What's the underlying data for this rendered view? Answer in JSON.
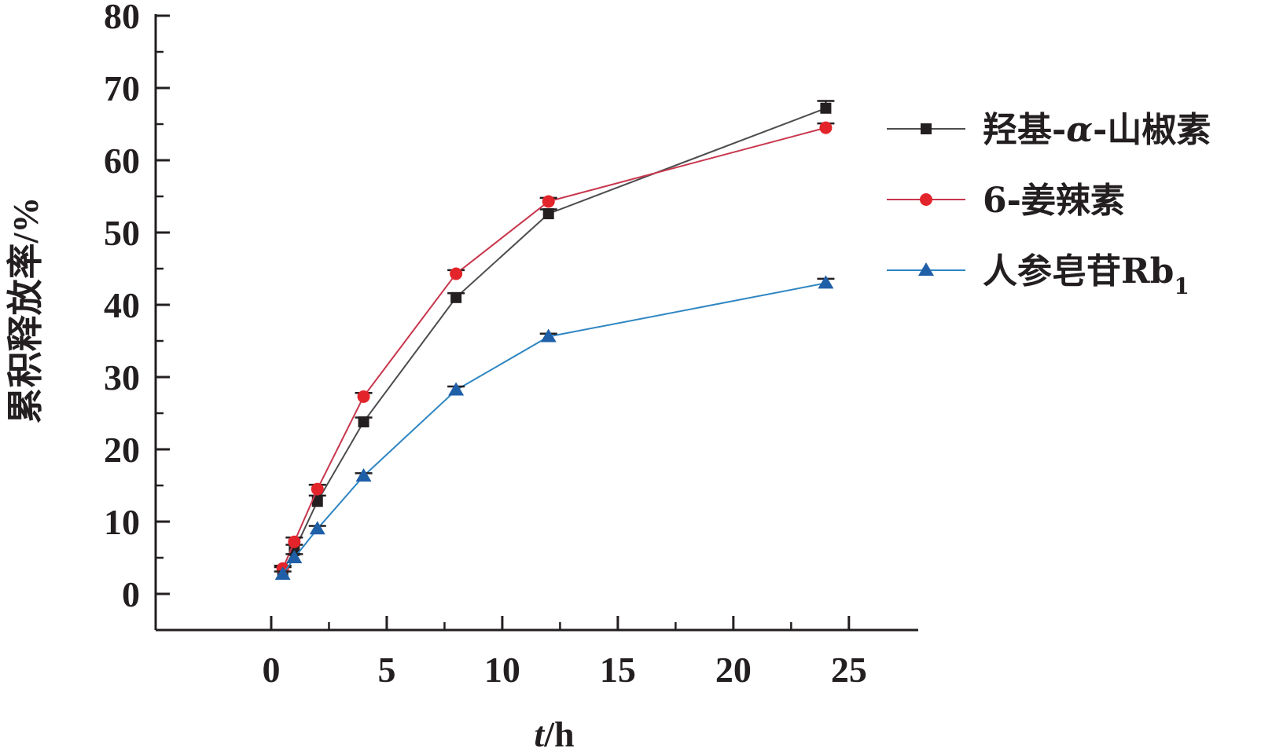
{
  "chart_data": {
    "type": "line",
    "xlabel": {
      "italic": "t",
      "rest": "/h"
    },
    "ylabel": "累积释放率/%",
    "xlim": [
      -5,
      28
    ],
    "ylim": [
      -5,
      80
    ],
    "xticks": [
      0,
      5,
      10,
      15,
      20,
      25
    ],
    "xticks_minor": [
      2.5,
      7.5,
      12.5,
      17.5,
      22.5
    ],
    "yticks": [
      0,
      10,
      20,
      30,
      40,
      50,
      60,
      70,
      80
    ],
    "yticks_minor": [
      5,
      15,
      25,
      35,
      45,
      55,
      65,
      75
    ],
    "x": [
      0.5,
      1,
      2,
      4,
      8,
      12,
      24
    ],
    "grid": false,
    "legend_position": "top-right, outside plot area",
    "series": [
      {
        "name": "羟基-α-山椒素",
        "name_parts": [
          "羟基-",
          "α",
          "-山椒素"
        ],
        "marker": "square",
        "color": "#4d4d4f",
        "marker_color": "#231f20",
        "values": [
          3.2,
          6.0,
          12.8,
          23.8,
          41.0,
          52.6,
          67.2
        ],
        "errors": [
          0.5,
          0.8,
          0.8,
          0.6,
          0.6,
          0.6,
          1.0
        ]
      },
      {
        "name": "6-姜辣素",
        "marker": "circle",
        "color": "#c8374d",
        "marker_color": "#e3242b",
        "values": [
          3.5,
          7.2,
          14.5,
          27.3,
          44.3,
          54.3,
          64.5
        ],
        "errors": [
          0.4,
          0.6,
          0.6,
          0.5,
          0.5,
          0.5,
          0.6
        ]
      },
      {
        "name": "人参皂苷Rb1",
        "name_parts": [
          "人参皂苷Rb",
          "1"
        ],
        "marker": "triangle",
        "color": "#2f86c2",
        "marker_color": "#1f5fa8",
        "values": [
          2.7,
          5.0,
          9.0,
          16.3,
          28.2,
          35.6,
          43.0
        ],
        "errors": [
          0.4,
          0.5,
          0.4,
          0.4,
          0.5,
          0.4,
          0.6
        ]
      }
    ]
  }
}
